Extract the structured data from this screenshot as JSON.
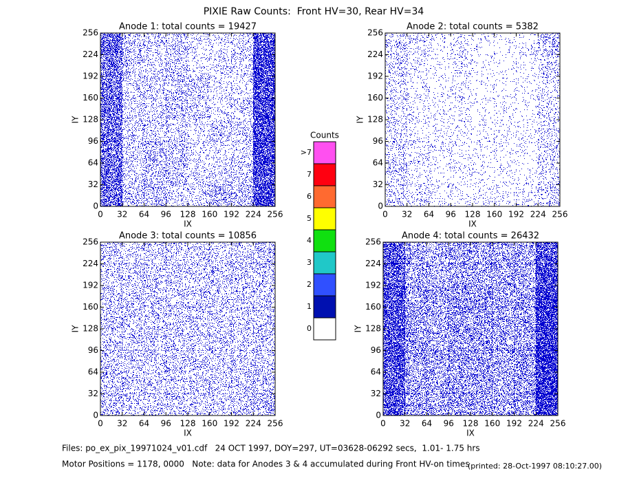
{
  "title": "PIXIE Raw Counts:  Front HV=30, Rear HV=34",
  "dot_color": "#0000d0",
  "colorbar": {
    "title": "Counts",
    "ticks": [
      0,
      1,
      2,
      3,
      4,
      5,
      6,
      7,
      ">7"
    ],
    "colors": [
      "#ffffff",
      "#0010b0",
      "#3050ff",
      "#20c8c8",
      "#10e010",
      "#ffff00",
      "#ff6a30",
      "#ff0010",
      "#ff50f0"
    ]
  },
  "footer": [
    "Files: po_ex_pix_19971024_v01.cdf   24 OCT 1997, DOY=297, UT=03628-06292 secs,  1.01- 1.75 hrs",
    "Motor Positions = 1178, 0000   Note: data for Anodes 3 & 4 accumulated during Front HV-on times",
    "(printed: 28-Oct-1997 08:10:27.00)"
  ],
  "chart_data": [
    {
      "type": "heatmap",
      "title": "Anode 1: total counts = 19427",
      "xlabel": "IX",
      "ylabel": "IY",
      "xlim": [
        0,
        256
      ],
      "ylim": [
        0,
        256
      ],
      "xticks": [
        0,
        32,
        64,
        96,
        128,
        160,
        192,
        224,
        256
      ],
      "yticks": [
        0,
        32,
        64,
        96,
        128,
        160,
        192,
        224,
        256
      ],
      "mean_counts": [
        [
          0.55,
          0.2,
          0.2,
          0.15,
          0.15,
          0.25,
          0.2,
          0.7
        ],
        [
          0.55,
          0.15,
          0.2,
          0.2,
          0.1,
          0.15,
          0.15,
          0.65
        ],
        [
          0.5,
          0.15,
          0.25,
          0.2,
          0.1,
          0.1,
          0.15,
          0.7
        ],
        [
          0.5,
          0.15,
          0.15,
          0.15,
          0.1,
          0.2,
          0.15,
          0.7
        ],
        [
          0.5,
          0.15,
          0.15,
          0.2,
          0.15,
          0.1,
          0.15,
          0.7
        ],
        [
          0.5,
          0.15,
          0.15,
          0.2,
          0.2,
          0.1,
          0.1,
          0.7
        ],
        [
          0.5,
          0.2,
          0.15,
          0.2,
          0.1,
          0.1,
          0.15,
          0.7
        ],
        [
          0.55,
          0.2,
          0.15,
          0.2,
          0.1,
          0.1,
          0.15,
          0.65
        ]
      ]
    },
    {
      "type": "heatmap",
      "title": "Anode 2: total counts = 5382",
      "xlabel": "IX",
      "ylabel": "IY",
      "xlim": [
        0,
        256
      ],
      "ylim": [
        0,
        256
      ],
      "xticks": [
        0,
        32,
        64,
        96,
        128,
        160,
        192,
        224,
        256
      ],
      "yticks": [
        0,
        32,
        64,
        96,
        128,
        160,
        192,
        224,
        256
      ],
      "mean_counts": [
        [
          0.15,
          0.1,
          0.07,
          0.07,
          0.06,
          0.06,
          0.08,
          0.15
        ],
        [
          0.15,
          0.08,
          0.06,
          0.06,
          0.05,
          0.05,
          0.06,
          0.12
        ],
        [
          0.12,
          0.08,
          0.07,
          0.06,
          0.05,
          0.05,
          0.05,
          0.12
        ],
        [
          0.12,
          0.07,
          0.06,
          0.06,
          0.05,
          0.05,
          0.05,
          0.12
        ],
        [
          0.12,
          0.07,
          0.05,
          0.07,
          0.05,
          0.05,
          0.05,
          0.12
        ],
        [
          0.12,
          0.08,
          0.05,
          0.08,
          0.04,
          0.04,
          0.05,
          0.12
        ],
        [
          0.12,
          0.08,
          0.05,
          0.08,
          0.04,
          0.04,
          0.05,
          0.15
        ],
        [
          0.15,
          0.1,
          0.06,
          0.08,
          0.05,
          0.05,
          0.06,
          0.18
        ]
      ]
    },
    {
      "type": "heatmap",
      "title": "Anode 3: total counts = 10856",
      "xlabel": "IX",
      "ylabel": "IY",
      "xlim": [
        0,
        256
      ],
      "ylim": [
        0,
        256
      ],
      "xticks": [
        0,
        32,
        64,
        96,
        128,
        160,
        192,
        224,
        256
      ],
      "yticks": [
        0,
        32,
        64,
        96,
        128,
        160,
        192,
        224,
        256
      ],
      "mean_counts": [
        [
          0.2,
          0.17,
          0.17,
          0.17,
          0.17,
          0.17,
          0.17,
          0.25
        ],
        [
          0.2,
          0.17,
          0.17,
          0.17,
          0.17,
          0.17,
          0.17,
          0.2
        ],
        [
          0.18,
          0.17,
          0.17,
          0.17,
          0.17,
          0.17,
          0.17,
          0.18
        ],
        [
          0.18,
          0.17,
          0.17,
          0.17,
          0.17,
          0.17,
          0.17,
          0.18
        ],
        [
          0.18,
          0.17,
          0.17,
          0.17,
          0.17,
          0.17,
          0.17,
          0.18
        ],
        [
          0.18,
          0.17,
          0.17,
          0.17,
          0.17,
          0.17,
          0.17,
          0.18
        ],
        [
          0.18,
          0.17,
          0.17,
          0.17,
          0.17,
          0.17,
          0.17,
          0.2
        ],
        [
          0.18,
          0.15,
          0.15,
          0.15,
          0.15,
          0.15,
          0.15,
          0.2
        ]
      ]
    },
    {
      "type": "heatmap",
      "title": "Anode 4: total counts = 26432",
      "xlabel": "IX",
      "ylabel": "IY",
      "xlim": [
        0,
        256
      ],
      "ylim": [
        0,
        256
      ],
      "xticks": [
        0,
        32,
        64,
        96,
        128,
        160,
        192,
        224,
        256
      ],
      "yticks": [
        0,
        32,
        64,
        96,
        128,
        160,
        192,
        224,
        256
      ],
      "mean_counts": [
        [
          0.65,
          0.35,
          0.3,
          0.35,
          0.35,
          0.3,
          0.35,
          0.75
        ],
        [
          0.65,
          0.35,
          0.3,
          0.35,
          0.35,
          0.3,
          0.35,
          0.75
        ],
        [
          0.65,
          0.35,
          0.3,
          0.35,
          0.35,
          0.3,
          0.35,
          0.75
        ],
        [
          0.65,
          0.35,
          0.3,
          0.35,
          0.35,
          0.3,
          0.35,
          0.75
        ],
        [
          0.65,
          0.35,
          0.3,
          0.35,
          0.35,
          0.3,
          0.35,
          0.75
        ],
        [
          0.65,
          0.35,
          0.3,
          0.35,
          0.35,
          0.3,
          0.35,
          0.75
        ],
        [
          0.6,
          0.3,
          0.3,
          0.3,
          0.3,
          0.3,
          0.3,
          0.7
        ],
        [
          0.6,
          0.3,
          0.25,
          0.3,
          0.3,
          0.3,
          0.3,
          0.65
        ]
      ]
    }
  ]
}
